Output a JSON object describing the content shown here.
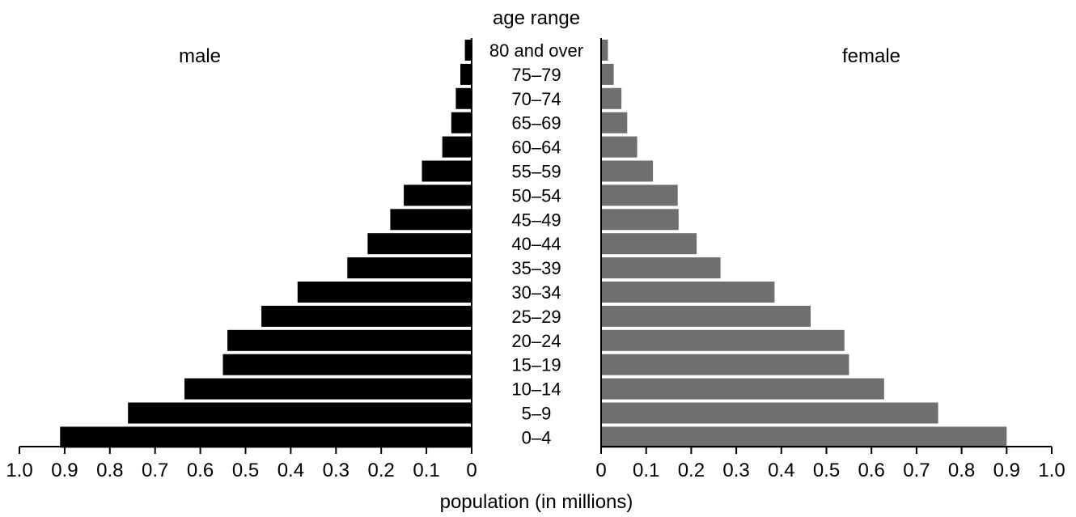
{
  "chart_data": {
    "type": "bar",
    "orientation": "horizontal",
    "layout": "population-pyramid",
    "title": "",
    "category_label": "age range",
    "xlabel": "population (in millions)",
    "categories": [
      "80 and over",
      "75–79",
      "70–74",
      "65–69",
      "60–64",
      "55–59",
      "50–54",
      "45–49",
      "40–44",
      "35–39",
      "30–34",
      "25–29",
      "20–24",
      "15–19",
      "10–14",
      "5–9",
      "0–4"
    ],
    "series": [
      {
        "name": "male",
        "color": "#000000",
        "side": "left",
        "values": [
          0.015,
          0.025,
          0.035,
          0.045,
          0.065,
          0.11,
          0.15,
          0.18,
          0.23,
          0.275,
          0.385,
          0.465,
          0.54,
          0.55,
          0.635,
          0.76,
          0.91
        ]
      },
      {
        "name": "female",
        "color": "#6f6f6f",
        "side": "right",
        "values": [
          0.015,
          0.028,
          0.045,
          0.058,
          0.08,
          0.115,
          0.17,
          0.172,
          0.212,
          0.265,
          0.385,
          0.465,
          0.54,
          0.55,
          0.628,
          0.748,
          0.9
        ]
      }
    ],
    "xlim": [
      0,
      1.0
    ],
    "x_tick_labels": [
      "0",
      "0.1",
      "0.2",
      "0.3",
      "0.4",
      "0.5",
      "0.6",
      "0.7",
      "0.8",
      "0.9",
      "1.0"
    ],
    "grid": false,
    "legend": "none"
  }
}
